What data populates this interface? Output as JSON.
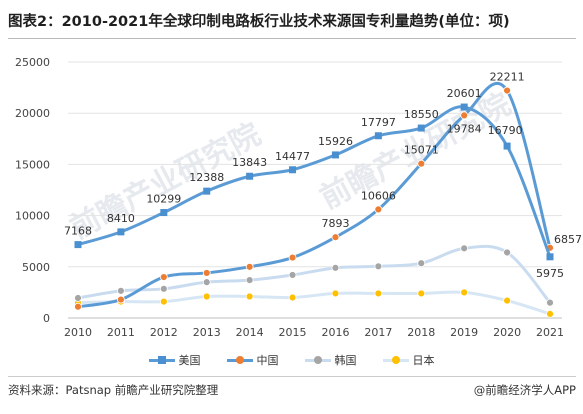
{
  "title": "图表2：2010-2021年全球印制电路板行业技术来源国专利量趋势(单位：项)",
  "source": "资料来源：Patsnap 前瞻产业研究院整理",
  "credit": "@前瞻经济学人APP",
  "watermark": "前瞻产业研究院",
  "colors": {
    "美国": "#4a8fcf",
    "中国": "#ed7d31",
    "韩国": "#a5a5a5",
    "日本": "#ffc000"
  },
  "chart_data": {
    "type": "line",
    "x": [
      "2010",
      "2011",
      "2012",
      "2013",
      "2014",
      "2015",
      "2016",
      "2017",
      "2018",
      "2019",
      "2020",
      "2021"
    ],
    "ylim": [
      0,
      25000
    ],
    "yticks": [
      0,
      5000,
      10000,
      15000,
      20000,
      25000
    ],
    "grid": true,
    "legend_position": "bottom",
    "series": [
      {
        "name": "美国",
        "values": [
          7168,
          8410,
          10299,
          12388,
          13843,
          14477,
          15926,
          17797,
          18550,
          20601,
          16790,
          5975
        ],
        "labels": [
          "7168",
          "8410",
          "10299",
          "12388",
          "13843",
          "14477",
          "15926",
          "17797",
          "18550",
          "20601",
          "16790",
          "5975"
        ]
      },
      {
        "name": "中国",
        "values": [
          1100,
          1800,
          4000,
          4400,
          5000,
          5900,
          7893,
          10606,
          15071,
          19784,
          22211,
          6857
        ],
        "labels": [
          "",
          "",
          "",
          "",
          "",
          "",
          "7893",
          "10606",
          "15071",
          "19784",
          "22211",
          "6857"
        ]
      },
      {
        "name": "韩国",
        "values": [
          1950,
          2650,
          2850,
          3500,
          3700,
          4200,
          4900,
          5050,
          5350,
          6800,
          6400,
          1500
        ],
        "labels": []
      },
      {
        "name": "日本",
        "values": [
          1500,
          1600,
          1600,
          2100,
          2100,
          2000,
          2400,
          2400,
          2400,
          2500,
          1700,
          400
        ],
        "labels": []
      }
    ]
  }
}
